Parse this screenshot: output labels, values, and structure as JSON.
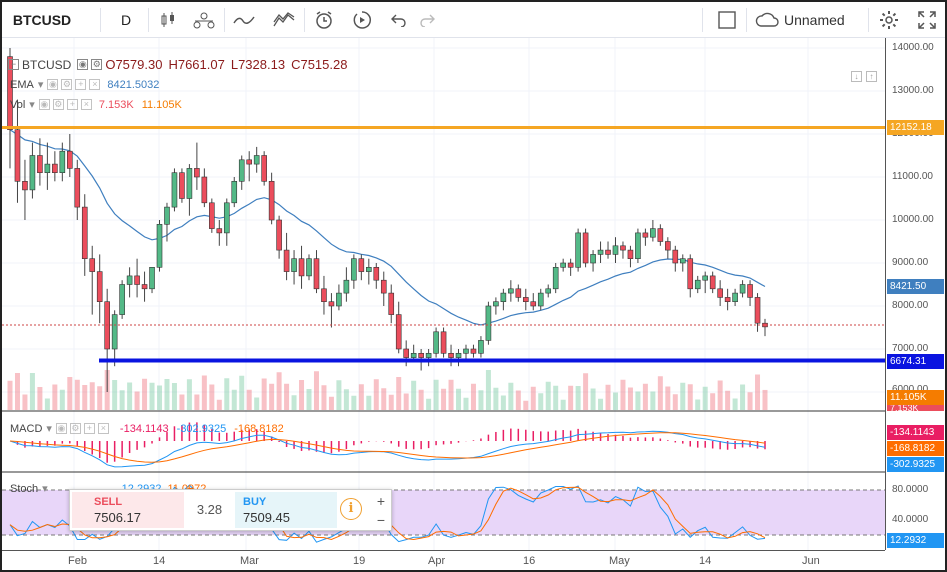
{
  "toolbar": {
    "symbol": "BTCUSD",
    "interval": "D",
    "layout_name": "Unnamed",
    "icons": [
      "candles-icon",
      "compare-icon",
      "indicators-icon",
      "templates-icon",
      "alert-icon",
      "replay-icon",
      "undo-icon",
      "redo-icon",
      "layout-icon",
      "cloud-icon",
      "settings-icon",
      "fullscreen-icon"
    ]
  },
  "legend": {
    "symbol": "BTCUSD",
    "open": "O7579.30",
    "high": "H7661.07",
    "low": "L7328.13",
    "close": "C7515.28",
    "ema_label": "EMA",
    "ema_value": "8421.5032",
    "vol_label": "Vol",
    "vol_value1": "7.153K",
    "vol_value2": "11.105K",
    "macd_label": "MACD",
    "macd_value1": "-134.1143",
    "macd_value2": "-302.9325",
    "macd_value3": "-168.8182",
    "stoch_label": "Stoch",
    "stoch_value1": "12.2932",
    "stoch_value2": "11.0972"
  },
  "price_axis": {
    "labels": [
      "14000.00",
      "13000.00",
      "12000.00",
      "11000.00",
      "10000.00",
      "9000.00",
      "8000.00",
      "7000.00",
      "6000.00"
    ],
    "tag_resistance": "12152.18",
    "tag_ema": "8421.50",
    "tag_support": "6674.31",
    "tag_volume": "11.105K",
    "tag_vol_cut": "7.153K",
    "tag_macd1": "-134.1143",
    "tag_macd2": "-168.8182",
    "tag_macd3": "-302.9325",
    "stoch_labels": [
      "80.0000",
      "40.0000"
    ],
    "tag_stoch": "12.2932"
  },
  "time_axis": {
    "labels": [
      "Feb",
      "14",
      "Mar",
      "19",
      "Apr",
      "16",
      "May",
      "14",
      "Jun"
    ]
  },
  "trade_panel": {
    "sell_label": "SELL",
    "sell_price": "7506.17",
    "spread": "3.28",
    "buy_label": "BUY",
    "buy_price": "7509.45",
    "info_icon": "i",
    "plus": "+",
    "minus": "−"
  },
  "colors": {
    "up": "#53b987",
    "down": "#eb4d5c",
    "ema": "#3f7fbf",
    "resistance": "#f5a623",
    "support": "#0a14e0",
    "macd_hist": "#e91e63",
    "macd_line": "#2196f3",
    "signal_line": "#ff6d00",
    "stoch_fill": "#e8d6f9"
  },
  "chart_data": {
    "type": "candlestick",
    "y_range": [
      6000,
      14000
    ],
    "x_labels": [
      "Feb",
      "14",
      "Mar",
      "19",
      "Apr",
      "16",
      "May",
      "14",
      "Jun"
    ],
    "resistance_level": 12152.18,
    "support_level": 6674.31,
    "last_close": 7515.28,
    "ema_last": 8421.5,
    "candles_ohlc_approx": [
      [
        13800,
        14000,
        11200,
        12100
      ],
      [
        12100,
        12800,
        10400,
        10900
      ],
      [
        10900,
        11400,
        10000,
        10700
      ],
      [
        10700,
        11800,
        10500,
        11500
      ],
      [
        11500,
        11900,
        10800,
        11100
      ],
      [
        11100,
        11800,
        10700,
        11300
      ],
      [
        11300,
        11600,
        10900,
        11100
      ],
      [
        11100,
        11800,
        10900,
        11600
      ],
      [
        11600,
        12000,
        11000,
        11200
      ],
      [
        11200,
        11400,
        10000,
        10300
      ],
      [
        10300,
        10600,
        8700,
        9100
      ],
      [
        9100,
        9400,
        7800,
        8800
      ],
      [
        8800,
        9200,
        7600,
        8100
      ],
      [
        8100,
        8400,
        6000,
        7000
      ],
      [
        7000,
        7900,
        6600,
        7800
      ],
      [
        7800,
        8600,
        7700,
        8500
      ],
      [
        8500,
        8900,
        8200,
        8700
      ],
      [
        8700,
        9100,
        8200,
        8500
      ],
      [
        8500,
        8800,
        8100,
        8400
      ],
      [
        8400,
        8900,
        8300,
        8900
      ],
      [
        8900,
        10000,
        8800,
        9900
      ],
      [
        9900,
        10400,
        9500,
        10300
      ],
      [
        10300,
        11200,
        10200,
        11100
      ],
      [
        11100,
        11200,
        10400,
        10500
      ],
      [
        10500,
        11300,
        10100,
        11200
      ],
      [
        11200,
        11800,
        10700,
        11000
      ],
      [
        11000,
        11200,
        10300,
        10400
      ],
      [
        10400,
        10500,
        9700,
        9800
      ],
      [
        9800,
        10000,
        9400,
        9700
      ],
      [
        9700,
        10500,
        9400,
        10400
      ],
      [
        10400,
        11000,
        10300,
        10900
      ],
      [
        10900,
        11500,
        10700,
        11400
      ],
      [
        11400,
        11600,
        10900,
        11300
      ],
      [
        11300,
        11700,
        11100,
        11500
      ],
      [
        11500,
        11600,
        10800,
        10900
      ],
      [
        10900,
        11100,
        9900,
        10000
      ],
      [
        10000,
        10100,
        9100,
        9300
      ],
      [
        9300,
        9700,
        8600,
        8800
      ],
      [
        8800,
        9300,
        8500,
        9100
      ],
      [
        9100,
        9400,
        8400,
        8700
      ],
      [
        8700,
        9200,
        8600,
        9100
      ],
      [
        9100,
        9300,
        8300,
        8400
      ],
      [
        8400,
        8700,
        7800,
        8100
      ],
      [
        8100,
        8300,
        7500,
        8000
      ],
      [
        8000,
        8500,
        7900,
        8300
      ],
      [
        8300,
        8900,
        8100,
        8600
      ],
      [
        8600,
        9200,
        8400,
        9100
      ],
      [
        9100,
        9200,
        8600,
        8800
      ],
      [
        8800,
        9100,
        8500,
        8900
      ],
      [
        8900,
        9000,
        8400,
        8600
      ],
      [
        8600,
        8800,
        8000,
        8300
      ],
      [
        8300,
        8500,
        7600,
        7800
      ],
      [
        7800,
        8100,
        6900,
        7000
      ],
      [
        7000,
        7200,
        6600,
        6800
      ],
      [
        6800,
        7100,
        6700,
        6900
      ],
      [
        6900,
        7000,
        6500,
        6800
      ],
      [
        6800,
        7000,
        6600,
        6900
      ],
      [
        6900,
        7500,
        6800,
        7400
      ],
      [
        7400,
        7500,
        6800,
        6900
      ],
      [
        6900,
        7100,
        6600,
        6800
      ],
      [
        6800,
        7000,
        6600,
        6900
      ],
      [
        6900,
        7100,
        6700,
        7000
      ],
      [
        7000,
        7100,
        6800,
        6900
      ],
      [
        6900,
        7300,
        6800,
        7200
      ],
      [
        7200,
        8100,
        7100,
        8000
      ],
      [
        8000,
        8200,
        7800,
        8100
      ],
      [
        8100,
        8400,
        7900,
        8300
      ],
      [
        8300,
        8600,
        8100,
        8400
      ],
      [
        8400,
        8500,
        8100,
        8200
      ],
      [
        8200,
        8400,
        7900,
        8100
      ],
      [
        8100,
        8300,
        7900,
        8000
      ],
      [
        8000,
        8400,
        7900,
        8300
      ],
      [
        8300,
        8500,
        8200,
        8400
      ],
      [
        8400,
        9000,
        8300,
        8900
      ],
      [
        8900,
        9100,
        8800,
        9000
      ],
      [
        9000,
        9100,
        8700,
        8900
      ],
      [
        8900,
        9800,
        8800,
        9700
      ],
      [
        9700,
        9800,
        8900,
        9000
      ],
      [
        9000,
        9300,
        8800,
        9200
      ],
      [
        9200,
        9500,
        9000,
        9300
      ],
      [
        9300,
        9500,
        9100,
        9200
      ],
      [
        9200,
        9600,
        9000,
        9400
      ],
      [
        9400,
        9500,
        9100,
        9300
      ],
      [
        9300,
        9400,
        8900,
        9100
      ],
      [
        9100,
        9800,
        9000,
        9700
      ],
      [
        9700,
        9800,
        9400,
        9600
      ],
      [
        9600,
        10000,
        9500,
        9800
      ],
      [
        9800,
        9900,
        9400,
        9500
      ],
      [
        9500,
        9600,
        9100,
        9300
      ],
      [
        9300,
        9400,
        8800,
        9000
      ],
      [
        9000,
        9200,
        8800,
        9100
      ],
      [
        9100,
        9200,
        8200,
        8400
      ],
      [
        8400,
        8700,
        8300,
        8600
      ],
      [
        8600,
        8800,
        8300,
        8700
      ],
      [
        8700,
        8800,
        8300,
        8400
      ],
      [
        8400,
        8600,
        8000,
        8200
      ],
      [
        8200,
        8400,
        7900,
        8100
      ],
      [
        8100,
        8400,
        8000,
        8300
      ],
      [
        8300,
        8600,
        8200,
        8500
      ],
      [
        8500,
        8600,
        8000,
        8200
      ],
      [
        8200,
        8300,
        7400,
        7600
      ],
      [
        7600,
        7700,
        7300,
        7515
      ]
    ]
  }
}
